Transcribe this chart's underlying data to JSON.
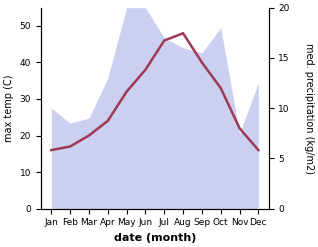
{
  "months": [
    "Jan",
    "Feb",
    "Mar",
    "Apr",
    "May",
    "Jun",
    "Jul",
    "Aug",
    "Sep",
    "Oct",
    "Nov",
    "Dec"
  ],
  "max_temp": [
    16,
    17,
    20,
    24,
    32,
    38,
    46,
    48,
    40,
    33,
    22,
    16
  ],
  "precipitation": [
    10,
    8.5,
    9,
    13,
    20,
    20,
    17,
    16,
    15.5,
    18,
    7.5,
    12.5
  ],
  "temp_color": "#9e3a55",
  "precip_color": "#b0b8e8",
  "precip_fill_alpha": 0.65,
  "ylabel_left": "max temp (C)",
  "ylabel_right": "med. precipitation (kg/m2)",
  "xlabel": "date (month)",
  "ylim_left": [
    0,
    55
  ],
  "ylim_right": [
    0,
    20
  ],
  "left_ticks": [
    0,
    10,
    20,
    30,
    40,
    50
  ],
  "right_ticks": [
    0,
    5,
    10,
    15,
    20
  ],
  "xlabel_fontsize": 8,
  "ylabel_fontsize": 7,
  "tick_fontsize": 6.5,
  "line_width": 1.8
}
